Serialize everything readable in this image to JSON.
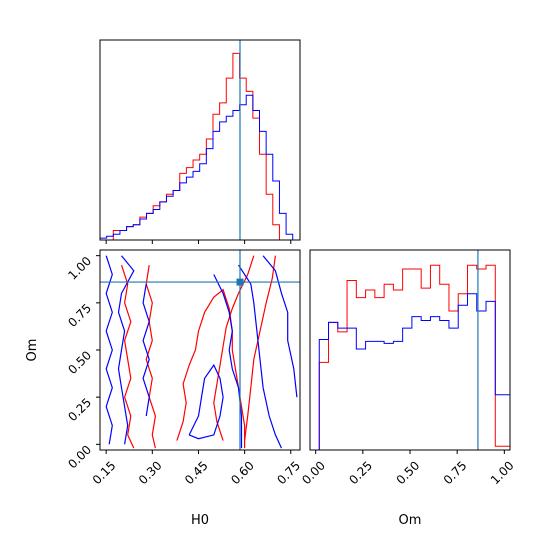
{
  "chart_data": [
    {
      "type": "histogram",
      "panel": "top-left",
      "variable": "H0",
      "xlim": [
        0.13,
        0.78
      ],
      "bins": [
        0.13,
        0.1516,
        0.1732,
        0.1948,
        0.2164,
        0.238,
        0.2596,
        0.2812,
        0.3028,
        0.3244,
        0.346,
        0.3676,
        0.3892,
        0.4108,
        0.4324,
        0.454,
        0.4756,
        0.4972,
        0.5188,
        0.5404,
        0.562,
        0.5836,
        0.6052,
        0.6268,
        0.6484,
        0.67,
        0.6916,
        0.7132,
        0.7348,
        0.7564,
        0.78
      ],
      "series": [
        {
          "color": "#ff0000",
          "values": [
            0,
            0,
            0.05,
            0.05,
            0.07,
            0.08,
            0.12,
            0.14,
            0.18,
            0.2,
            0.24,
            0.26,
            0.35,
            0.38,
            0.42,
            0.45,
            0.53,
            0.66,
            0.72,
            0.85,
            0.98,
            0.85,
            0.78,
            0.64,
            0.45,
            0.24,
            0.08,
            0,
            0,
            0
          ]
        },
        {
          "color": "#0000ff",
          "values": [
            0.01,
            0.02,
            0.03,
            0.05,
            0.07,
            0.08,
            0.11,
            0.14,
            0.16,
            0.2,
            0.23,
            0.26,
            0.3,
            0.33,
            0.36,
            0.4,
            0.48,
            0.57,
            0.62,
            0.65,
            0.68,
            0.71,
            0.76,
            0.68,
            0.57,
            0.45,
            0.31,
            0.14,
            0.03,
            0
          ]
        }
      ],
      "truth_line": 0.585
    },
    {
      "type": "contour",
      "panel": "bottom-left",
      "xlabel": "H0",
      "ylabel": "Om",
      "xlim": [
        0.13,
        0.78
      ],
      "ylim": [
        -0.03,
        1.03
      ],
      "xticks": [
        "0.15",
        "0.30",
        "0.45",
        "0.60",
        "0.75"
      ],
      "yticks": [
        "0.00",
        "0.25",
        "0.50",
        "0.75",
        "1.00"
      ],
      "truth_point": [
        0.585,
        0.86
      ],
      "series": [
        {
          "color": "#ff0000",
          "contours": [
            [
              [
                0.2,
                0.95
              ],
              [
                0.22,
                0.85
              ],
              [
                0.21,
                0.75
              ],
              [
                0.23,
                0.65
              ],
              [
                0.21,
                0.55
              ],
              [
                0.22,
                0.45
              ],
              [
                0.23,
                0.35
              ],
              [
                0.21,
                0.25
              ],
              [
                0.23,
                0.15
              ],
              [
                0.22,
                0.05
              ],
              [
                0.24,
                -0.02
              ]
            ],
            [
              [
                0.29,
                0.95
              ],
              [
                0.28,
                0.85
              ],
              [
                0.3,
                0.75
              ],
              [
                0.29,
                0.65
              ],
              [
                0.3,
                0.55
              ],
              [
                0.28,
                0.45
              ],
              [
                0.3,
                0.35
              ],
              [
                0.29,
                0.25
              ],
              [
                0.31,
                0.15
              ],
              [
                0.3,
                0.05
              ],
              [
                0.31,
                -0.02
              ]
            ],
            [
              [
                0.38,
                0.02
              ],
              [
                0.4,
                0.12
              ],
              [
                0.41,
                0.22
              ],
              [
                0.4,
                0.32
              ],
              [
                0.42,
                0.42
              ],
              [
                0.44,
                0.5
              ],
              [
                0.45,
                0.6
              ],
              [
                0.47,
                0.7
              ],
              [
                0.5,
                0.78
              ],
              [
                0.53,
                0.82
              ],
              [
                0.55,
                0.72
              ],
              [
                0.56,
                0.6
              ],
              [
                0.56,
                0.5
              ],
              [
                0.57,
                0.4
              ],
              [
                0.58,
                0.3
              ],
              [
                0.59,
                0.2
              ],
              [
                0.6,
                0.1
              ],
              [
                0.6,
                -0.02
              ]
            ],
            [
              [
                0.53,
                0.02
              ],
              [
                0.51,
                0.12
              ],
              [
                0.5,
                0.22
              ],
              [
                0.51,
                0.32
              ],
              [
                0.52,
                0.42
              ],
              [
                0.53,
                0.52
              ],
              [
                0.54,
                0.62
              ],
              [
                0.56,
                0.72
              ],
              [
                0.58,
                0.8
              ],
              [
                0.61,
                0.9
              ],
              [
                0.63,
                1.0
              ]
            ],
            [
              [
                0.6,
                0.02
              ],
              [
                0.61,
                0.15
              ],
              [
                0.62,
                0.3
              ],
              [
                0.63,
                0.45
              ],
              [
                0.65,
                0.6
              ],
              [
                0.67,
                0.75
              ],
              [
                0.69,
                0.88
              ],
              [
                0.7,
                1.0
              ]
            ]
          ]
        },
        {
          "color": "#0000ff",
          "contours": [
            [
              [
                0.15,
                1.0
              ],
              [
                0.17,
                0.9
              ],
              [
                0.15,
                0.8
              ],
              [
                0.17,
                0.7
              ],
              [
                0.15,
                0.6
              ],
              [
                0.17,
                0.5
              ],
              [
                0.15,
                0.4
              ],
              [
                0.17,
                0.3
              ],
              [
                0.15,
                0.2
              ],
              [
                0.17,
                0.1
              ],
              [
                0.16,
                0.0
              ]
            ],
            [
              [
                0.2,
                1.0
              ],
              [
                0.24,
                0.92
              ],
              [
                0.2,
                0.8
              ],
              [
                0.19,
                0.7
              ],
              [
                0.21,
                0.6
              ],
              [
                0.2,
                0.5
              ],
              [
                0.19,
                0.4
              ],
              [
                0.2,
                0.3
              ],
              [
                0.21,
                0.2
              ],
              [
                0.22,
                0.1
              ],
              [
                0.21,
                0.0
              ]
            ],
            [
              [
                0.28,
                0.85
              ],
              [
                0.27,
                0.75
              ],
              [
                0.29,
                0.65
              ],
              [
                0.27,
                0.55
              ],
              [
                0.29,
                0.45
              ],
              [
                0.27,
                0.35
              ],
              [
                0.29,
                0.25
              ],
              [
                0.28,
                0.15
              ]
            ],
            [
              [
                0.42,
                0.05
              ],
              [
                0.45,
                0.15
              ],
              [
                0.46,
                0.25
              ],
              [
                0.47,
                0.35
              ],
              [
                0.5,
                0.42
              ],
              [
                0.52,
                0.35
              ],
              [
                0.53,
                0.25
              ],
              [
                0.52,
                0.15
              ],
              [
                0.5,
                0.05
              ],
              [
                0.45,
                0.03
              ],
              [
                0.42,
                0.05
              ]
            ],
            [
              [
                0.5,
                0.9
              ],
              [
                0.53,
                0.8
              ],
              [
                0.55,
                0.7
              ],
              [
                0.56,
                0.6
              ],
              [
                0.55,
                0.5
              ],
              [
                0.56,
                0.4
              ],
              [
                0.58,
                0.3
              ],
              [
                0.59,
                0.15
              ],
              [
                0.59,
                -0.02
              ]
            ],
            [
              [
                0.58,
                0.95
              ],
              [
                0.62,
                0.85
              ],
              [
                0.63,
                0.75
              ],
              [
                0.64,
                0.6
              ],
              [
                0.65,
                0.45
              ],
              [
                0.66,
                0.3
              ],
              [
                0.68,
                0.15
              ],
              [
                0.7,
                0.05
              ],
              [
                0.72,
                -0.02
              ]
            ],
            [
              [
                0.66,
                1.0
              ],
              [
                0.7,
                0.92
              ],
              [
                0.72,
                0.8
              ],
              [
                0.74,
                0.7
              ],
              [
                0.74,
                0.55
              ],
              [
                0.76,
                0.4
              ],
              [
                0.77,
                0.25
              ]
            ]
          ]
        }
      ]
    },
    {
      "type": "histogram",
      "panel": "bottom-right",
      "variable": "Om",
      "xlabel": "Om",
      "xlim": [
        -0.03,
        1.03
      ],
      "xticks": [
        "0.00",
        "0.25",
        "0.50",
        "0.75",
        "1.00"
      ],
      "bins": [
        -0.03,
        0.0191,
        0.0682,
        0.1173,
        0.1664,
        0.2155,
        0.2646,
        0.3137,
        0.3628,
        0.4119,
        0.461,
        0.5101,
        0.5592,
        0.6083,
        0.6574,
        0.7065,
        0.7556,
        0.8047,
        0.8538,
        0.9029,
        0.952,
        1.03
      ],
      "series": [
        {
          "color": "#ff0000",
          "values": [
            0,
            0.46,
            0.67,
            0.62,
            0.89,
            0.8,
            0.84,
            0.8,
            0.87,
            0.84,
            0.95,
            0.95,
            0.85,
            0.97,
            0.87,
            0.73,
            0.82,
            0.97,
            0.95,
            0.97,
            0.02
          ]
        },
        {
          "color": "#0000ff",
          "values": [
            0,
            0.58,
            0.67,
            0.64,
            0.64,
            0.53,
            0.57,
            0.57,
            0.56,
            0.57,
            0.64,
            0.7,
            0.68,
            0.7,
            0.68,
            0.64,
            0.76,
            0.82,
            0.73,
            0.78,
            0.29
          ]
        }
      ],
      "truth_line": 0.86
    }
  ]
}
